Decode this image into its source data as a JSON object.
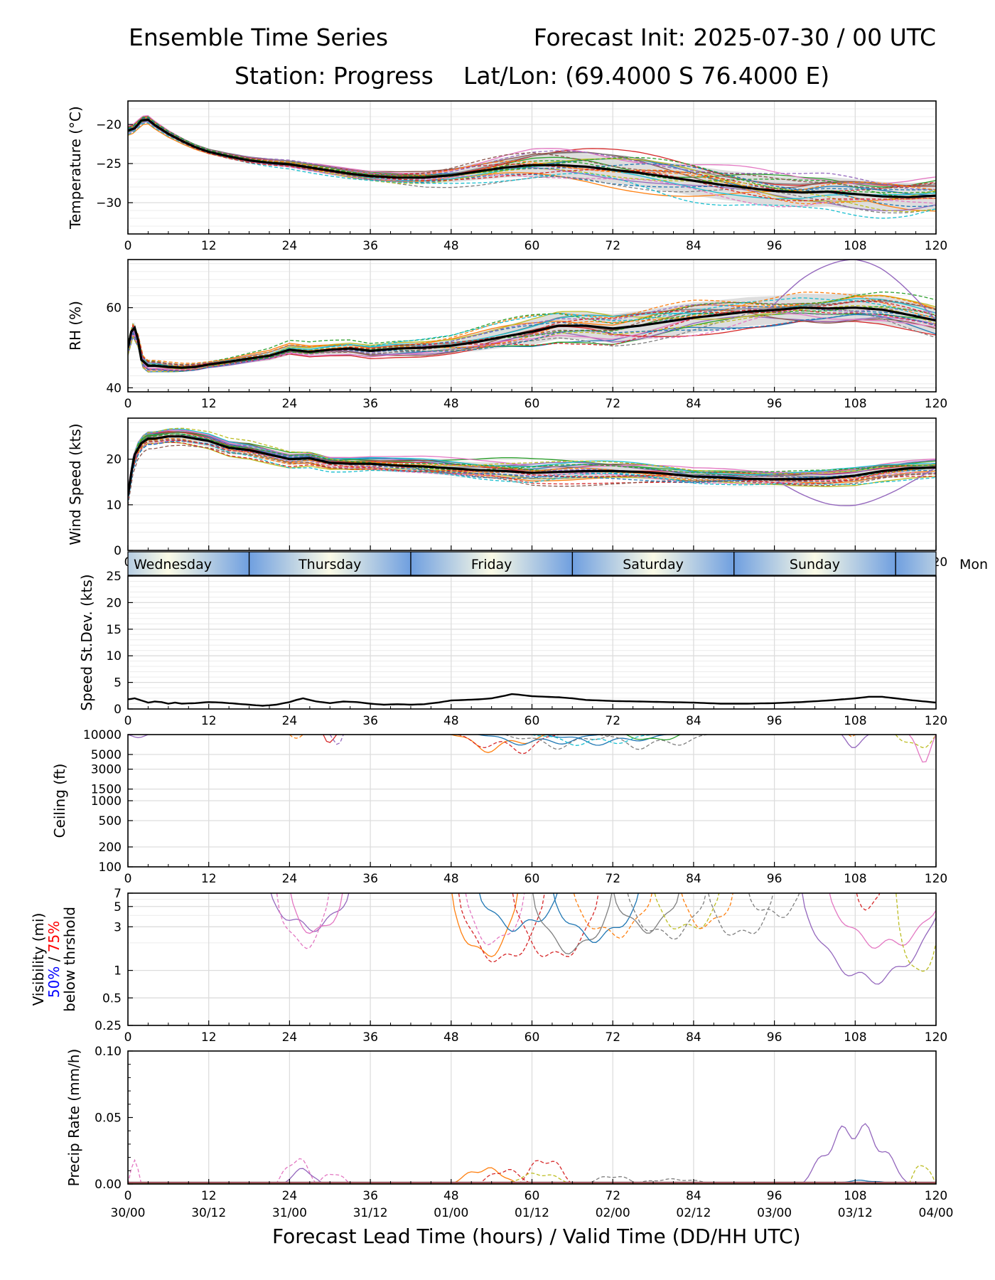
{
  "header": {
    "title_left": "Ensemble Time Series",
    "title_right": "Forecast Init: 2025-07-30 / 00 UTC",
    "station": "Station: Progress",
    "latlon": "Lat/Lon: (69.4000 S 76.4000 E)"
  },
  "xlabel": "Forecast Lead Time (hours) / Valid Time (DD/HH UTC)",
  "colors": {
    "ensemble_palette": [
      "#1f77b4",
      "#ff7f0e",
      "#2ca02c",
      "#d62728",
      "#9467bd",
      "#8c564b",
      "#e377c2",
      "#7f7f7f",
      "#bcbd22",
      "#17becf"
    ],
    "mean": "#000000",
    "spread": "#d3d3d3",
    "vis_50pct": "#0000ff",
    "vis_75pct": "#ff0000",
    "day_band_edge": "#6f9fe0",
    "day_band_center": "#fbfbe6"
  },
  "day_strip": {
    "days": [
      "Wednesday",
      "Thursday",
      "Friday",
      "Saturday",
      "Sunday",
      "Mon"
    ]
  },
  "chart_data": [
    {
      "type": "line",
      "name": "temperature",
      "ylabel": "Temperature (°C)",
      "xlim": [
        0,
        120
      ],
      "xticks": [
        0,
        12,
        24,
        36,
        48,
        60,
        72,
        84,
        96,
        108,
        120
      ],
      "ylim": [
        -34,
        -17
      ],
      "yticks": [
        -20,
        -25,
        -30
      ],
      "ytick_labels": [
        "−20",
        "−25",
        "−30"
      ],
      "mean": {
        "x": [
          0,
          1,
          2,
          3,
          4,
          6,
          8,
          10,
          12,
          15,
          18,
          21,
          24,
          27,
          30,
          33,
          36,
          40,
          44,
          48,
          52,
          56,
          60,
          64,
          68,
          72,
          76,
          80,
          84,
          88,
          92,
          96,
          100,
          104,
          108,
          112,
          116,
          120
        ],
        "y": [
          -20.8,
          -20.5,
          -19.5,
          -19.4,
          -20.1,
          -21.2,
          -22.1,
          -22.9,
          -23.5,
          -24.1,
          -24.6,
          -24.9,
          -25.1,
          -25.5,
          -25.9,
          -26.3,
          -26.6,
          -26.8,
          -26.8,
          -26.5,
          -26.0,
          -25.5,
          -25.2,
          -25.2,
          -25.4,
          -25.8,
          -26.2,
          -26.7,
          -27.2,
          -27.7,
          -28.1,
          -28.5,
          -28.7,
          -28.6,
          -28.9,
          -29.2,
          -29.3,
          -29.1
        ]
      },
      "spread_halfwidth": {
        "x": [
          0,
          12,
          24,
          36,
          48,
          60,
          72,
          84,
          96,
          108,
          120
        ],
        "y": [
          0.4,
          0.3,
          0.4,
          0.5,
          0.9,
          1.5,
          1.7,
          1.9,
          1.9,
          1.9,
          1.8
        ]
      },
      "members": 24
    },
    {
      "type": "line",
      "name": "relative_humidity",
      "ylabel": "RH (%)",
      "xlim": [
        0,
        120
      ],
      "xticks": [
        0,
        12,
        24,
        36,
        48,
        60,
        72,
        84,
        96,
        108,
        120
      ],
      "ylim": [
        39,
        72
      ],
      "yticks": [
        40,
        60
      ],
      "mean": {
        "x": [
          0,
          0.5,
          1,
          1.5,
          2,
          3,
          4,
          6,
          8,
          10,
          12,
          15,
          18,
          21,
          24,
          27,
          30,
          33,
          36,
          40,
          44,
          48,
          52,
          56,
          60,
          64,
          68,
          72,
          76,
          80,
          84,
          88,
          92,
          96,
          100,
          104,
          108,
          112,
          116,
          120
        ],
        "y": [
          50,
          54,
          55,
          52,
          47,
          45.5,
          45.5,
          45.2,
          45,
          45.2,
          45.8,
          46.5,
          47.3,
          48,
          49.5,
          49,
          49.5,
          49.8,
          49.2,
          49.8,
          50,
          50.5,
          51.5,
          52.8,
          54,
          55.5,
          55.5,
          54.8,
          55.5,
          56.5,
          57.5,
          58.2,
          59,
          59.4,
          60,
          59.8,
          60,
          59.5,
          58.2,
          56.8
        ]
      },
      "spread_halfwidth": {
        "x": [
          0,
          12,
          24,
          36,
          48,
          60,
          72,
          84,
          96,
          108,
          120
        ],
        "y": [
          1.5,
          0.8,
          1.3,
          1.3,
          1.8,
          3.2,
          3.6,
          3.8,
          3.5,
          3.6,
          3.4
        ]
      },
      "members": 24
    },
    {
      "type": "line",
      "name": "wind_speed",
      "ylabel": "Wind Speed (kts)",
      "xlim": [
        0,
        120
      ],
      "xticks": [
        0,
        12,
        24,
        36,
        48,
        60,
        72,
        84,
        96,
        108,
        120
      ],
      "ylim": [
        0,
        29
      ],
      "yticks": [
        0,
        10,
        20
      ],
      "mean": {
        "x": [
          0,
          0.5,
          1,
          2,
          3,
          4,
          6,
          8,
          10,
          12,
          15,
          18,
          21,
          24,
          27,
          30,
          33,
          36,
          40,
          44,
          48,
          52,
          56,
          60,
          64,
          68,
          72,
          76,
          80,
          84,
          88,
          92,
          96,
          100,
          104,
          108,
          112,
          116,
          120
        ],
        "y": [
          12,
          17,
          21,
          23.5,
          24.5,
          24.5,
          25,
          25,
          24.5,
          24,
          22.5,
          22,
          21,
          20,
          20.2,
          19.2,
          19,
          19,
          18.6,
          18.4,
          18,
          17.6,
          17.4,
          17,
          17.2,
          17.4,
          17.4,
          17.2,
          16.8,
          16.2,
          16.0,
          15.7,
          15.6,
          15.6,
          15.8,
          16.4,
          17.4,
          18,
          18.2
        ]
      },
      "spread_halfwidth": {
        "x": [
          0,
          12,
          24,
          36,
          48,
          60,
          72,
          84,
          96,
          108,
          120
        ],
        "y": [
          1.2,
          1.2,
          1.3,
          1.2,
          1.6,
          2.0,
          1.6,
          1.4,
          1.3,
          1.6,
          1.5
        ]
      },
      "members": 24
    },
    {
      "type": "line",
      "name": "speed_stdev",
      "ylabel": "Speed St.Dev. (kts)",
      "xlim": [
        0,
        120
      ],
      "xticks": [
        0,
        12,
        24,
        36,
        48,
        60,
        72,
        84,
        96,
        108,
        120
      ],
      "ylim": [
        0,
        25
      ],
      "yticks": [
        0,
        5,
        10,
        15,
        20,
        25
      ],
      "series": [
        {
          "x": [
            0,
            1,
            2,
            3,
            4,
            5,
            6,
            7,
            8,
            10,
            12,
            14,
            16,
            18,
            20,
            22,
            24,
            25,
            26,
            28,
            30,
            32,
            34,
            36,
            38,
            40,
            42,
            44,
            46,
            48,
            50,
            52,
            54,
            56,
            57,
            58,
            60,
            62,
            64,
            66,
            68,
            70,
            72,
            76,
            80,
            84,
            88,
            92,
            96,
            100,
            104,
            108,
            110,
            112,
            116,
            120
          ],
          "y": [
            1.8,
            2.0,
            1.6,
            1.2,
            1.4,
            1.3,
            1.0,
            1.2,
            1.0,
            1.1,
            1.3,
            1.2,
            1.0,
            0.8,
            0.6,
            0.8,
            1.3,
            1.7,
            2.0,
            1.4,
            1.1,
            1.4,
            1.3,
            1.0,
            0.8,
            0.9,
            0.8,
            0.9,
            1.2,
            1.6,
            1.7,
            1.8,
            2.0,
            2.5,
            2.8,
            2.7,
            2.4,
            2.3,
            2.2,
            2.0,
            1.7,
            1.6,
            1.5,
            1.4,
            1.3,
            1.2,
            1.0,
            1.0,
            1.1,
            1.3,
            1.6,
            2.0,
            2.3,
            2.3,
            1.7,
            1.2
          ]
        }
      ]
    },
    {
      "type": "line",
      "name": "ceiling",
      "ylabel": "Ceiling (ft)",
      "xlim": [
        0,
        120
      ],
      "xticks": [
        0,
        12,
        24,
        36,
        48,
        60,
        72,
        84,
        96,
        108,
        120
      ],
      "scale": "log",
      "ylim": [
        100,
        10000
      ],
      "yticks": [
        100,
        200,
        500,
        1000,
        1500,
        3000,
        5000,
        10000
      ],
      "members": 24
    },
    {
      "type": "line",
      "name": "visibility",
      "ylabel": "Visibility (mi)",
      "ylabel_sub_50": "50%",
      "ylabel_sub_sep": " / ",
      "ylabel_sub_75": "75%",
      "ylabel_sub2": "below thrshold",
      "xlim": [
        0,
        120
      ],
      "xticks": [
        0,
        12,
        24,
        36,
        48,
        60,
        72,
        84,
        96,
        108,
        120
      ],
      "scale": "log",
      "ylim": [
        0.25,
        7
      ],
      "yticks": [
        0.25,
        0.5,
        1,
        3,
        5,
        7
      ],
      "members": 24
    },
    {
      "type": "line",
      "name": "precip_rate",
      "ylabel": "Precip Rate (mm/h)",
      "xlim": [
        0,
        120
      ],
      "xticks": [
        0,
        12,
        24,
        36,
        48,
        60,
        72,
        84,
        96,
        108,
        120
      ],
      "ylim": [
        0,
        0.1
      ],
      "yticks": [
        0,
        0.05,
        0.1
      ],
      "ytick_labels": [
        "0.00",
        "0.05",
        "0.10"
      ],
      "xtick_dates": [
        "30/00",
        "30/12",
        "31/00",
        "31/12",
        "01/00",
        "01/12",
        "02/00",
        "02/12",
        "03/00",
        "03/12",
        "04/00"
      ],
      "members": 24
    }
  ]
}
